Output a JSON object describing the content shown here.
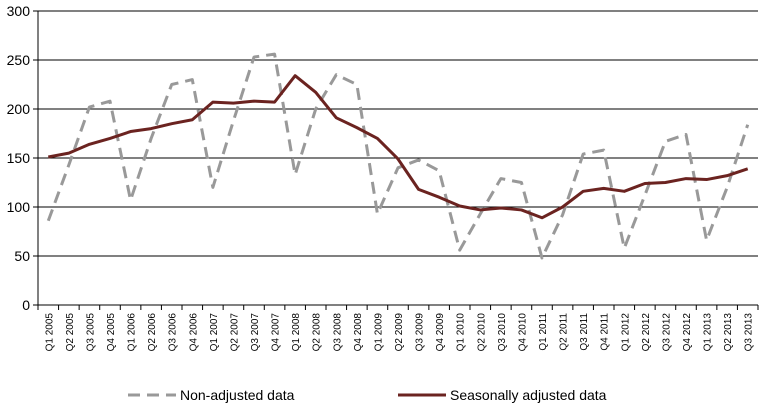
{
  "chart_data": {
    "type": "line",
    "categories": [
      "Q1 2005",
      "Q2 2005",
      "Q3 2005",
      "Q4 2005",
      "Q1 2006",
      "Q2 2006",
      "Q3 2006",
      "Q4 2006",
      "Q1 2007",
      "Q2 2007",
      "Q3 2007",
      "Q4 2007",
      "Q1 2008",
      "Q2 2008",
      "Q3 2008",
      "Q4 2008",
      "Q1 2009",
      "Q2 2009",
      "Q3 2009",
      "Q4 2009",
      "Q1 2010",
      "Q2 2010",
      "Q3 2010",
      "Q4 2010",
      "Q1 2011",
      "Q2 2011",
      "Q3 2011",
      "Q4 2011",
      "Q1 2012",
      "Q2 2012",
      "Q3 2012",
      "Q4 2012",
      "Q1 2013",
      "Q2 2013",
      "Q3 2013"
    ],
    "series": [
      {
        "name": "Non-adjusted data",
        "color": "#999999",
        "dashed": true,
        "values": [
          86,
          143,
          202,
          208,
          107,
          170,
          225,
          230,
          120,
          188,
          253,
          256,
          133,
          200,
          235,
          225,
          93,
          140,
          148,
          137,
          56,
          93,
          129,
          125,
          48,
          92,
          154,
          158,
          58,
          112,
          167,
          174,
          66,
          120,
          184
        ]
      },
      {
        "name": "Seasonally adjusted data",
        "color": "#6b2320",
        "dashed": false,
        "values": [
          151,
          155,
          164,
          170,
          177,
          180,
          185,
          189,
          207,
          206,
          208,
          207,
          234,
          217,
          191,
          181,
          170,
          149,
          118,
          110,
          101,
          97,
          99,
          97,
          89,
          100,
          116,
          119,
          116,
          124,
          125,
          129,
          128,
          132,
          139
        ]
      }
    ],
    "ylim": [
      0,
      300
    ],
    "yticks": [
      0,
      50,
      100,
      150,
      200,
      250,
      300
    ],
    "grid": true,
    "legend_position": "bottom",
    "title": "",
    "xlabel": "",
    "ylabel": ""
  }
}
